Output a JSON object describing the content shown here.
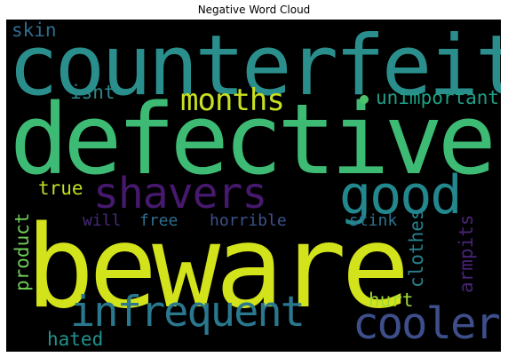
{
  "title": "Negative Word Cloud",
  "words": {
    "counterfeit": "counterfeit",
    "defective": "defective",
    "beware": "beware",
    "shavers": "shavers",
    "good": "good",
    "infrequent": "infrequent",
    "cooler": "cooler",
    "months": "months",
    "skin": "skin",
    "isnt": "isnt",
    "unimportant": "unimportant",
    "true": "true",
    "will": "will",
    "free": "free",
    "horrible": "horrible",
    "stink": "stink",
    "product": "product",
    "clothes": "clothes",
    "armpits": "armpits",
    "hurt": "hurt",
    "hated": "hated"
  },
  "colors": {
    "background": "#000000",
    "counterfeit": "#2a8f8c",
    "defective": "#3dbb74",
    "beware": "#d2e21b",
    "shavers": "#46196e",
    "good": "#23888e",
    "infrequent": "#2a788e",
    "cooler": "#3d4e8a",
    "months": "#c8e020",
    "skin": "#2f6c8e",
    "isnt": "#2a8a8c",
    "unimportant": "#1fa088",
    "true": "#bddf26",
    "will": "#482a78",
    "free": "#2e6e8e",
    "horrible": "#3b528b",
    "stink": "#2c728e",
    "product": "#6ece58",
    "clothes": "#26828e",
    "armpits": "#482475",
    "hurt": "#9fda3a",
    "hated": "#21918c",
    "dot": "#4ec36b"
  }
}
